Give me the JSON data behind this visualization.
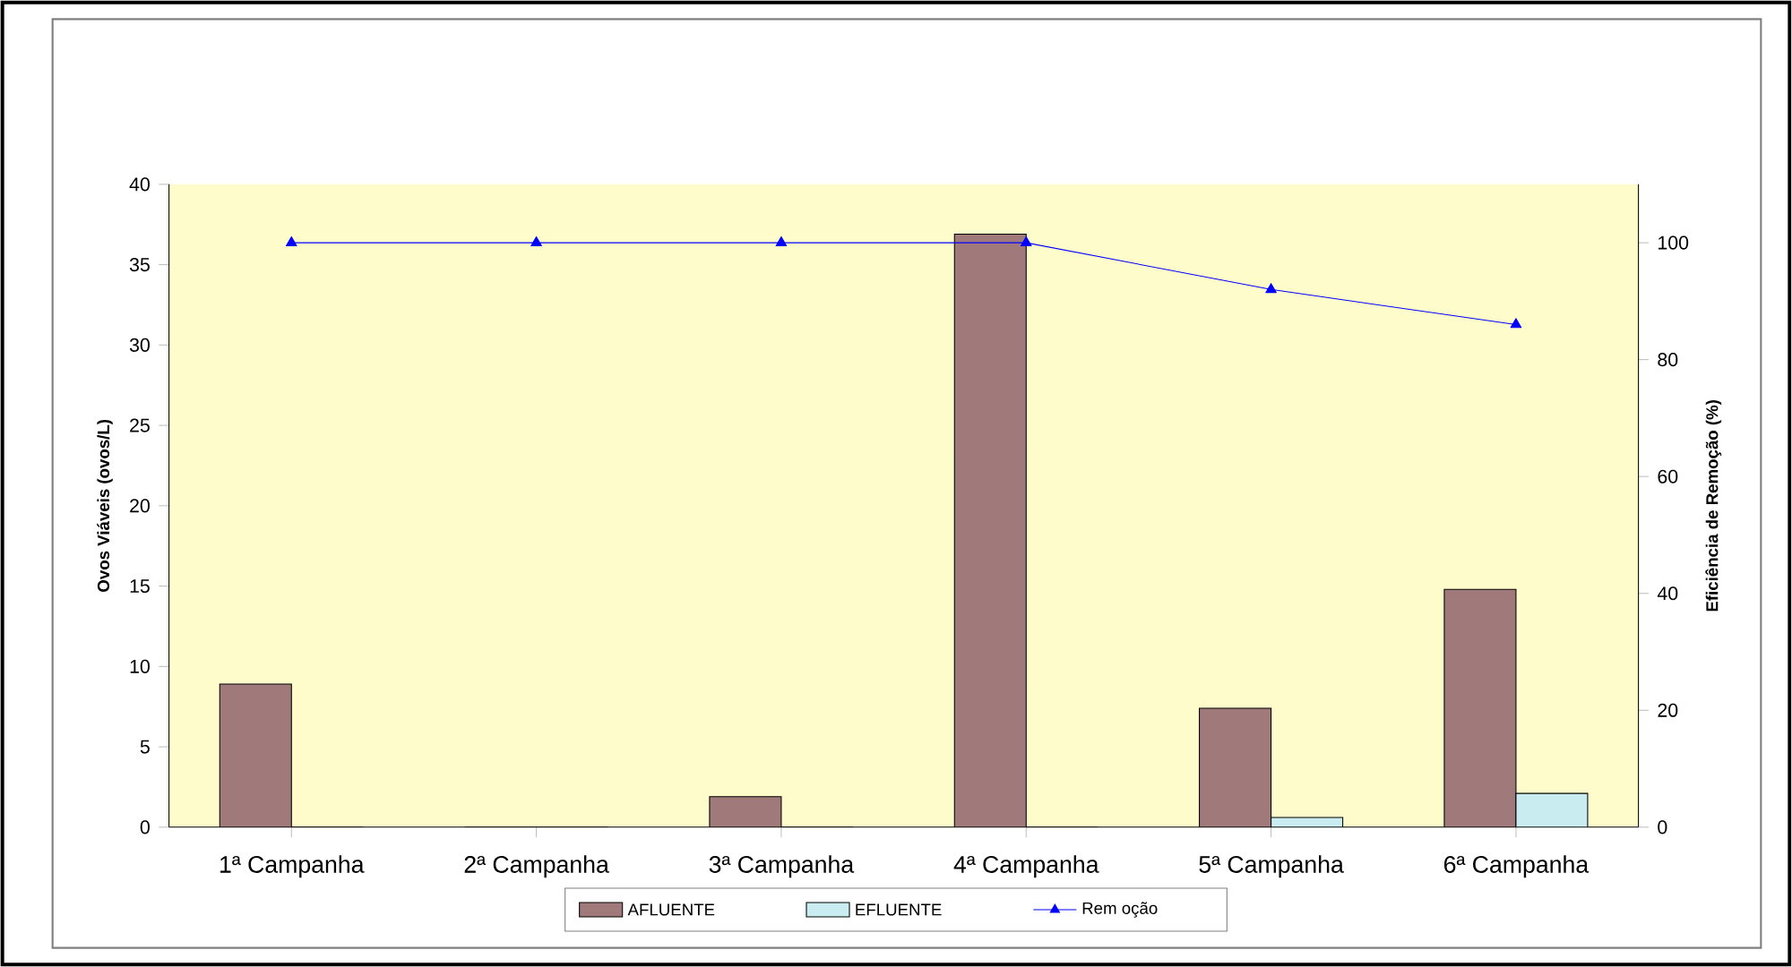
{
  "chart_data": {
    "type": "bar",
    "categories": [
      "1ª Campanha",
      "2ª Campanha",
      "3ª Campanha",
      "4ª Campanha",
      "5ª Campanha",
      "6ª Campanha"
    ],
    "ylabel": "Ovos Viáveis (ovos/L)",
    "y2label": "Eficiência de Remoção  (%)",
    "ylim": [
      0,
      40
    ],
    "yticks": [
      0,
      5,
      10,
      15,
      20,
      25,
      30,
      35,
      40
    ],
    "y2lim": [
      0,
      110
    ],
    "y2ticks": [
      0,
      20,
      40,
      60,
      80,
      100
    ],
    "legend": "bottom",
    "grid": false,
    "series": [
      {
        "name": "AFLUENTE",
        "color": "#a07a7a",
        "values": [
          8.9,
          0,
          1.9,
          36.9,
          7.4,
          14.8
        ]
      },
      {
        "name": "EFLUENTE",
        "color": "#c8ecf0",
        "values": [
          0,
          0,
          0,
          0,
          0.6,
          2.1
        ]
      },
      {
        "name": "Rem oção",
        "type": "line",
        "axis": "y2",
        "color": "#0000ff",
        "marker": "triangle",
        "values": [
          100,
          100,
          100,
          100,
          92,
          86
        ]
      }
    ]
  }
}
